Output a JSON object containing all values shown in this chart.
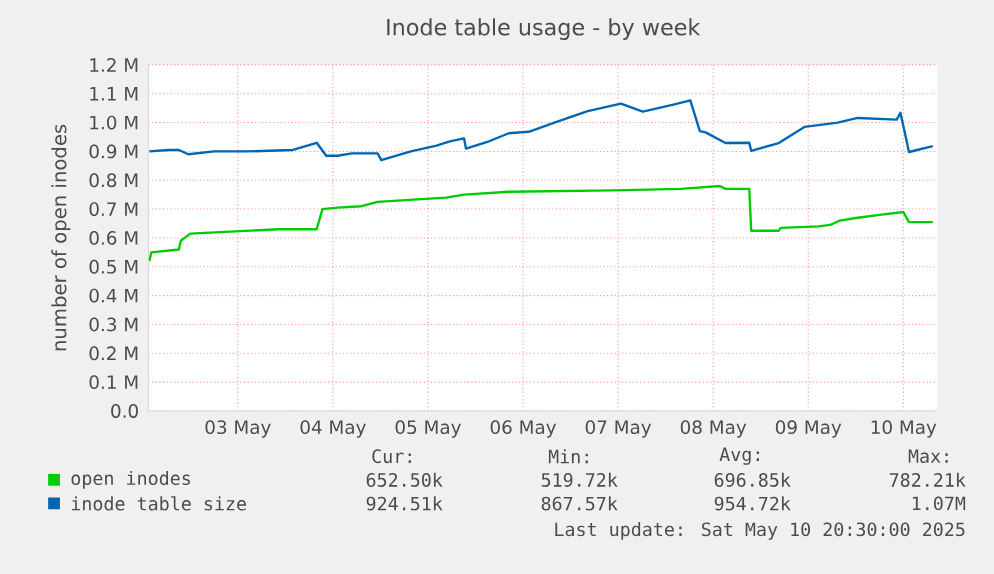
{
  "chart_data": {
    "type": "line",
    "title": "Inode table usage - by week",
    "ylabel": "number of open inodes",
    "xlim": [
      "2025-05-02T13:26",
      "2025-05-10T20:30"
    ],
    "ylim": [
      0,
      1.2
    ],
    "xticks": [
      {
        "value": "2025-05-03T12:00",
        "label": "03 May"
      },
      {
        "value": "2025-05-04T12:00",
        "label": "04 May"
      },
      {
        "value": "2025-05-05T12:00",
        "label": "05 May"
      },
      {
        "value": "2025-05-06T12:00",
        "label": "06 May"
      },
      {
        "value": "2025-05-07T12:00",
        "label": "07 May"
      },
      {
        "value": "2025-05-08T12:00",
        "label": "08 May"
      },
      {
        "value": "2025-05-09T12:00",
        "label": "09 May"
      },
      {
        "value": "2025-05-10T12:00",
        "label": "10 May"
      }
    ],
    "yticks": [
      {
        "value": 0,
        "label": "0.0"
      },
      {
        "value": 0.1,
        "label": "0.1 M"
      },
      {
        "value": 0.2,
        "label": "0.2 M"
      },
      {
        "value": 0.3,
        "label": "0.3 M"
      },
      {
        "value": 0.4,
        "label": "0.4 M"
      },
      {
        "value": 0.5,
        "label": "0.5 M"
      },
      {
        "value": 0.6,
        "label": "0.6 M"
      },
      {
        "value": 0.7,
        "label": "0.7 M"
      },
      {
        "value": 0.8,
        "label": "0.8 M"
      },
      {
        "value": 0.9,
        "label": "0.9 M"
      },
      {
        "value": 1.0,
        "label": "1.0 M"
      },
      {
        "value": 1.1,
        "label": "1.1 M"
      },
      {
        "value": 1.2,
        "label": "1.2 M"
      }
    ],
    "grid": true,
    "legend": "bottom",
    "series": [
      {
        "name": "open inodes",
        "color": "#00cc00",
        "x": [
          "2025-05-02T13:41",
          "2025-05-02T14:10",
          "2025-05-02T21:07",
          "2025-05-02T21:36",
          "2025-05-03T00:00",
          "2025-05-03T07:26",
          "2025-05-03T22:19",
          "2025-05-04T07:55",
          "2025-05-04T09:22",
          "2025-05-04T13:12",
          "2025-05-04T19:12",
          "2025-05-04T23:17",
          "2025-05-05T16:34",
          "2025-05-05T21:07",
          "2025-05-06T08:24",
          "2025-05-07T10:48",
          "2025-05-08T03:50",
          "2025-05-08T13:41",
          "2025-05-08T15:07",
          "2025-05-08T21:07",
          "2025-05-08T21:36",
          "2025-05-09T04:34",
          "2025-05-09T05:02",
          "2025-05-09T14:38",
          "2025-05-09T17:31",
          "2025-05-09T19:55",
          "2025-05-10T00:29",
          "2025-05-10T06:00",
          "2025-05-10T12:00",
          "2025-05-10T13:26",
          "2025-05-10T19:26"
        ],
        "values": [
          0.52,
          0.55,
          0.56,
          0.59,
          0.615,
          0.62,
          0.63,
          0.63,
          0.7,
          0.705,
          0.71,
          0.725,
          0.74,
          0.75,
          0.76,
          0.765,
          0.77,
          0.78,
          0.77,
          0.77,
          0.625,
          0.625,
          0.635,
          0.64,
          0.645,
          0.66,
          0.67,
          0.68,
          0.69,
          0.655,
          0.655
        ]
      },
      {
        "name": "inode table size",
        "color": "#0066b3",
        "x": [
          "2025-05-02T13:41",
          "2025-05-02T18:29",
          "2025-05-02T21:07",
          "2025-05-02T23:31",
          "2025-05-03T06:00",
          "2025-05-03T14:24",
          "2025-05-04T01:55",
          "2025-05-04T07:55",
          "2025-05-04T10:19",
          "2025-05-04T13:12",
          "2025-05-04T16:48",
          "2025-05-04T23:17",
          "2025-05-05T00:14",
          "2025-05-05T07:41",
          "2025-05-05T14:10",
          "2025-05-05T17:31",
          "2025-05-05T21:07",
          "2025-05-05T21:36",
          "2025-05-06T03:36",
          "2025-05-06T08:24",
          "2025-05-06T13:26",
          "2025-05-06T19:55",
          "2025-05-07T04:19",
          "2025-05-07T12:43",
          "2025-05-07T18:14",
          "2025-05-08T01:41",
          "2025-05-08T06:14",
          "2025-05-08T08:38",
          "2025-05-08T10:05",
          "2025-05-08T15:07",
          "2025-05-08T21:07",
          "2025-05-08T21:36",
          "2025-05-09T04:34",
          "2025-05-09T11:02",
          "2025-05-09T19:26",
          "2025-05-10T00:29",
          "2025-05-10T10:19",
          "2025-05-10T11:17",
          "2025-05-10T13:26",
          "2025-05-10T19:26"
        ],
        "values": [
          0.9,
          0.905,
          0.905,
          0.89,
          0.9,
          0.9,
          0.905,
          0.93,
          0.885,
          0.885,
          0.893,
          0.893,
          0.87,
          0.9,
          0.92,
          0.935,
          0.945,
          0.91,
          0.936,
          0.963,
          0.968,
          1.0,
          1.04,
          1.066,
          1.038,
          1.061,
          1.077,
          0.97,
          0.966,
          0.929,
          0.93,
          0.902,
          0.929,
          0.985,
          1.0,
          1.016,
          1.01,
          1.034,
          0.898,
          0.918
        ]
      }
    ],
    "annotations": [
      "Cur:",
      "Min:",
      "Avg:",
      "Max:",
      "652.50k",
      "519.72k",
      "696.85k",
      "782.21k",
      "924.51k",
      "867.57k",
      "954.72k",
      "1.07M",
      "Last update:  Sat May 10 20:30:00 2025"
    ]
  }
}
